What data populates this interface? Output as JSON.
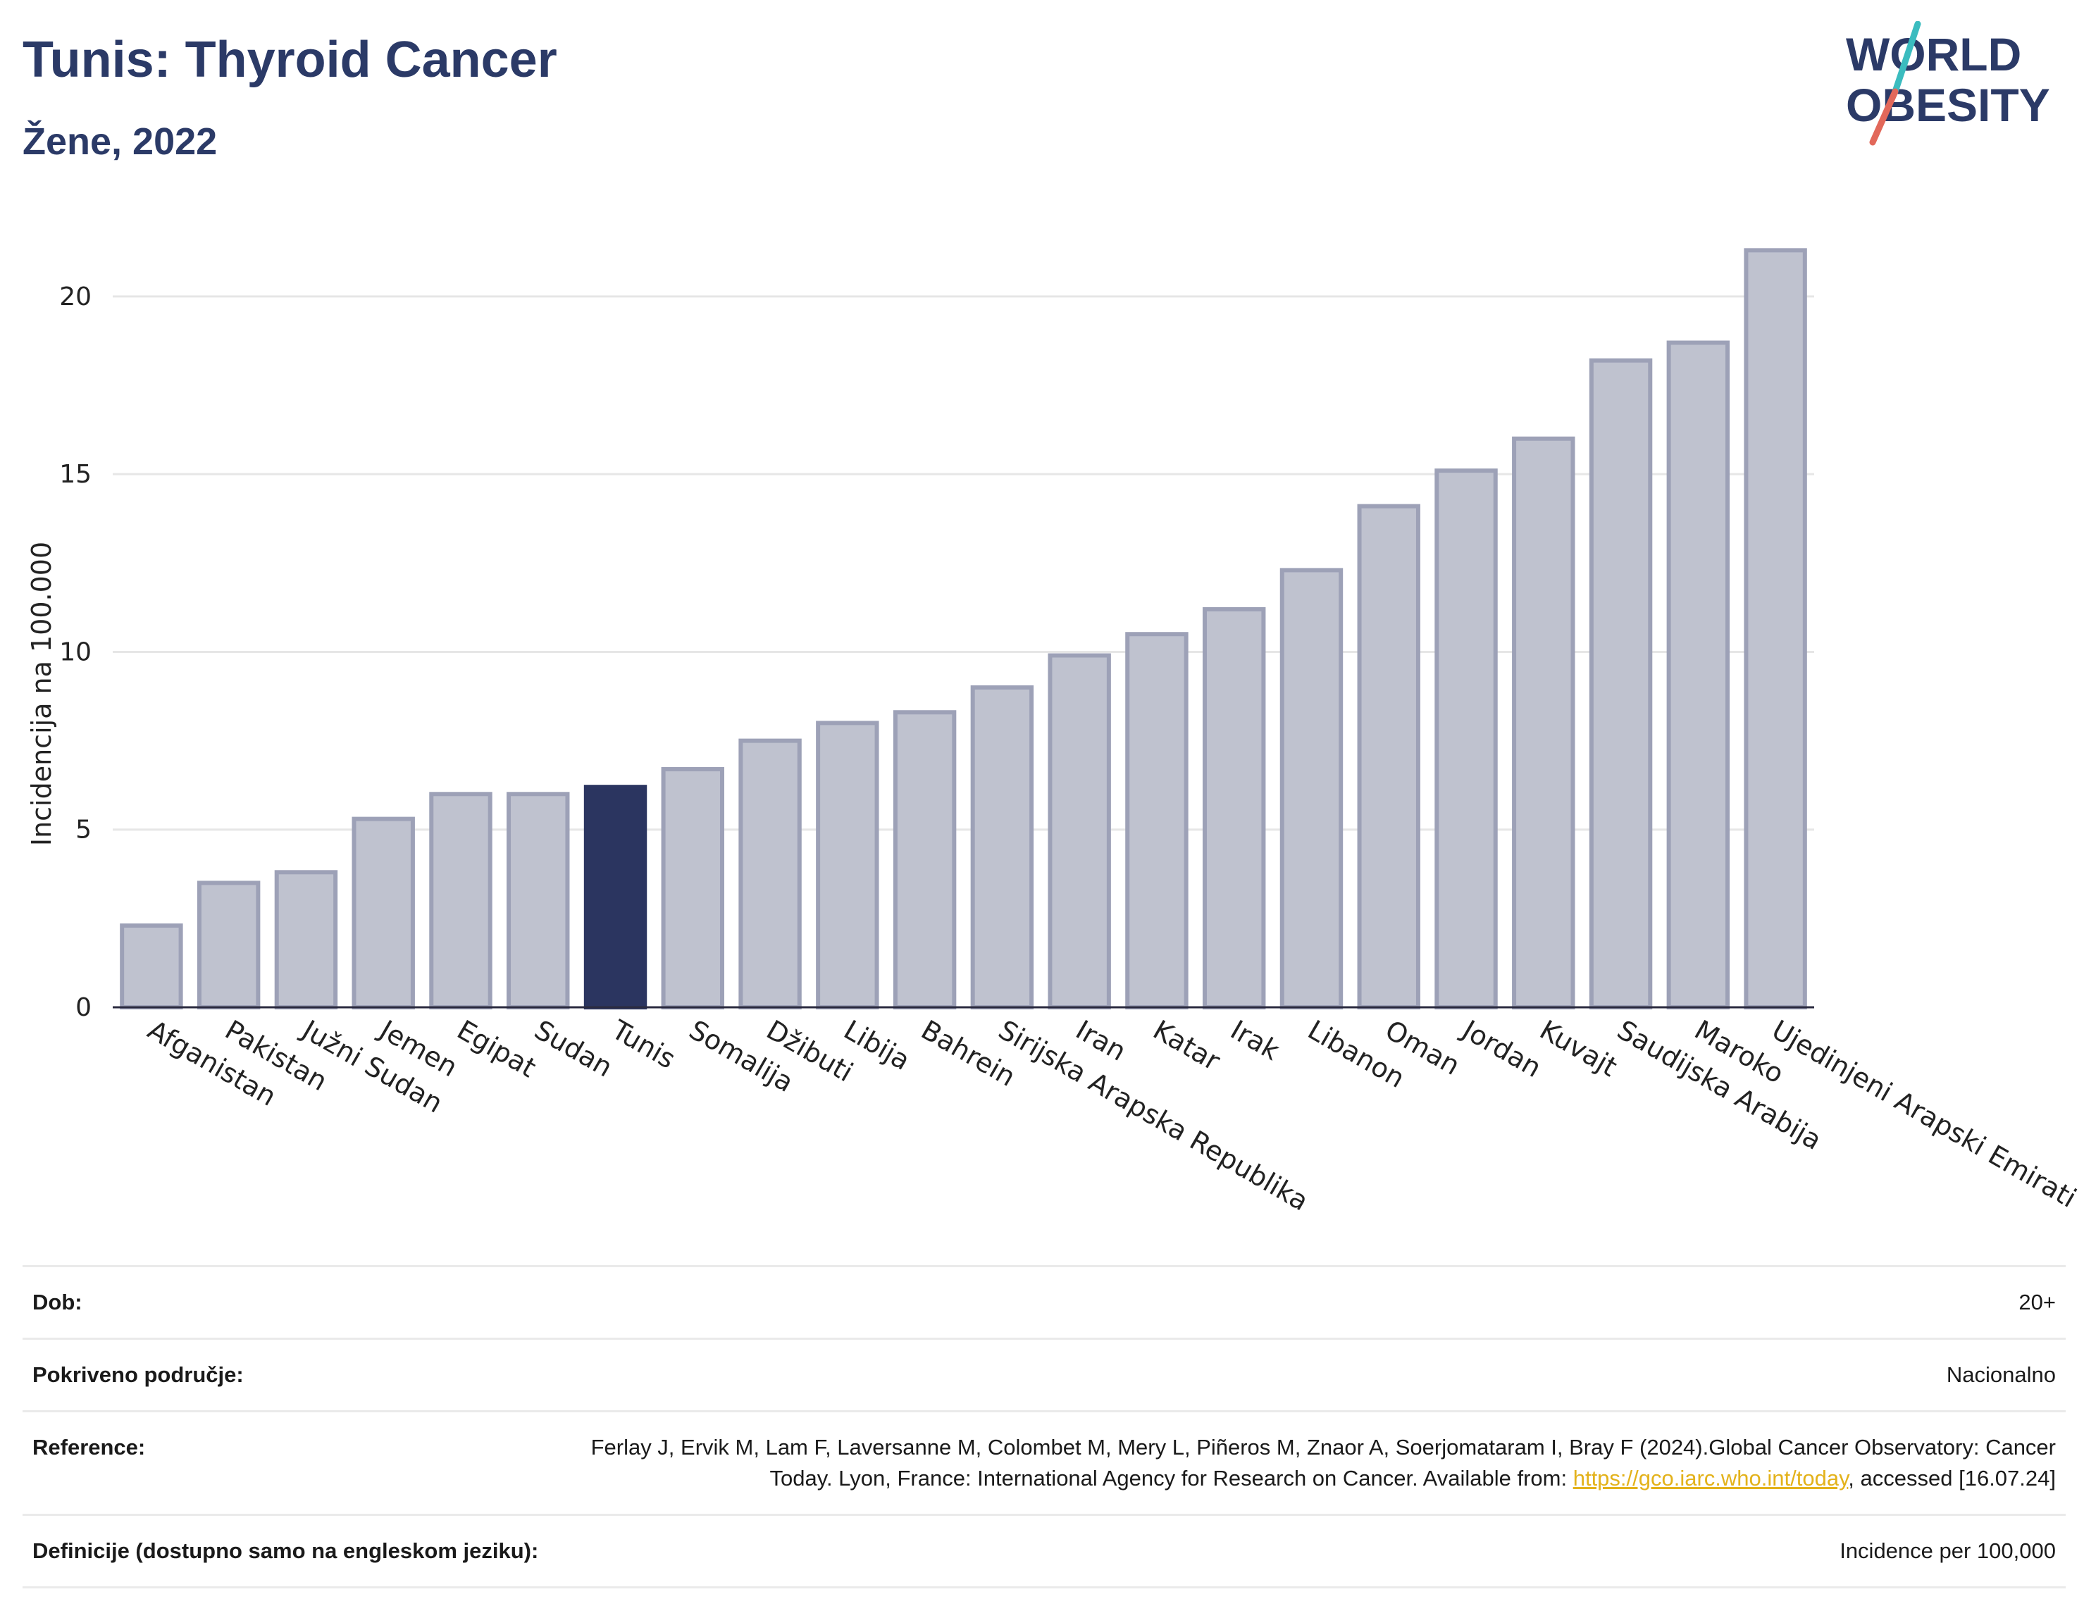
{
  "header": {
    "title": "Tunis: Thyroid Cancer",
    "subtitle": "Žene, 2022"
  },
  "logo": {
    "line1": "WORLD",
    "line2": "OBESITY",
    "accent_teal": "#3bbcbf",
    "accent_red": "#e2685a",
    "text_color": "#2b3a67"
  },
  "colors": {
    "highlight": "#2b3560",
    "bar": "#bfc2cf",
    "bar_border": "#9da1b7"
  },
  "chart_data": {
    "type": "bar",
    "ylabel": "Incidencija na 100.000",
    "ylim": [
      0,
      22
    ],
    "yticks": [
      0,
      5,
      10,
      15,
      20
    ],
    "grid": true,
    "highlight": "Tunis",
    "categories": [
      "Afganistan",
      "Pakistan",
      "Južni Sudan",
      "Jemen",
      "Egipat",
      "Sudan",
      "Tunis",
      "Somalija",
      "Džibuti",
      "Libija",
      "Bahrein",
      "Sirijska Arapska Republika",
      "Iran",
      "Katar",
      "Irak",
      "Libanon",
      "Oman",
      "Jordan",
      "Kuvajt",
      "Saudijska Arabija",
      "Maroko",
      "Ujedinjeni Arapski Emirati"
    ],
    "values": [
      2.3,
      3.5,
      3.8,
      5.3,
      6.0,
      6.0,
      6.2,
      6.7,
      7.5,
      8.0,
      8.3,
      9.0,
      9.9,
      10.5,
      11.2,
      12.3,
      14.1,
      15.1,
      16.0,
      18.2,
      18.7,
      21.3
    ]
  },
  "info": {
    "age_label": "Dob:",
    "age_value": "20+",
    "coverage_label": "Pokriveno područje:",
    "coverage_value": "Nacionalno",
    "reference_label": "Reference:",
    "reference_text_1": "Ferlay J, Ervik M, Lam F, Laversanne M, Colombet M, Mery L, Piñeros M, Znaor A, Soerjomataram I, Bray F (2024).Global Cancer Observatory: Cancer Today. Lyon, France: International Agency for Research on Cancer. Available from: ",
    "reference_link": "https://gco.iarc.who.int/today",
    "reference_text_2": ", accessed [16.07.24]",
    "definitions_label": "Definicije (dostupno samo na engleskom jeziku):",
    "definitions_value": "Incidence per 100,000"
  }
}
